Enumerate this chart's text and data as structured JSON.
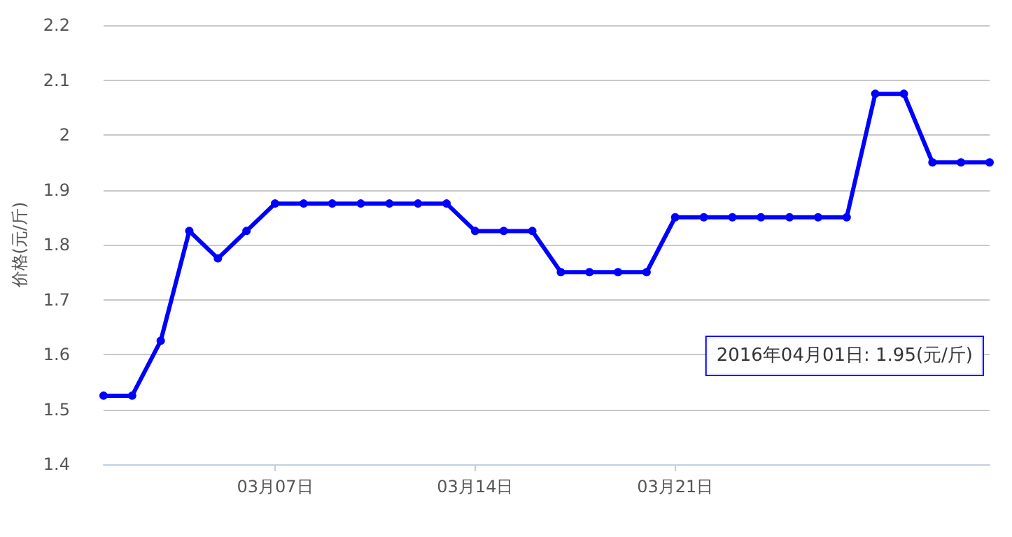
{
  "chart_data": {
    "type": "line",
    "ylabel": "价格(元/斤)",
    "categories": [
      null,
      null,
      null,
      null,
      null,
      null,
      "03月07日",
      null,
      null,
      null,
      null,
      null,
      null,
      "03月14日",
      null,
      null,
      null,
      null,
      null,
      null,
      "03月21日",
      null,
      null,
      null,
      null,
      null,
      null,
      null,
      null,
      null,
      null,
      null
    ],
    "series": [
      {
        "color": "#0000ff",
        "values": [
          1.525,
          1.525,
          1.625,
          1.825,
          1.775,
          1.825,
          1.875,
          1.875,
          1.875,
          1.875,
          1.875,
          1.875,
          1.875,
          1.825,
          1.825,
          1.825,
          1.75,
          1.75,
          1.75,
          1.75,
          1.85,
          1.85,
          1.85,
          1.85,
          1.85,
          1.85,
          1.85,
          2.075,
          2.075,
          1.95,
          1.95,
          1.95
        ]
      }
    ],
    "ylim": [
      1.4,
      2.2
    ],
    "yticks": [
      1.4,
      1.5,
      1.6,
      1.7,
      1.8,
      1.9,
      2,
      2.1,
      2.2
    ],
    "grid": "y",
    "marker": "circle",
    "line_style": "solid",
    "annotations": [
      "2016年04月01日: 1.95(元/斤)"
    ]
  }
}
